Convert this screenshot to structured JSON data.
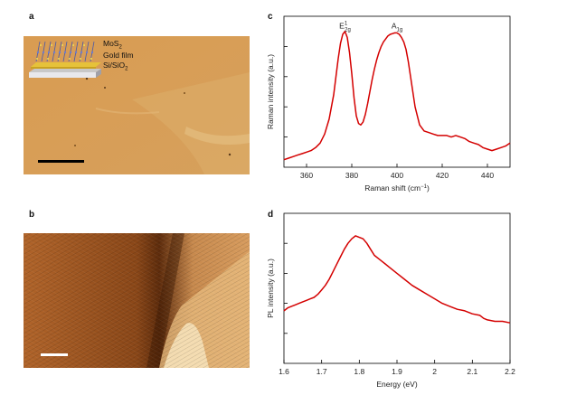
{
  "panels": {
    "a": {
      "letter": "a",
      "legend": [
        "MoS",
        "Gold film",
        "Si/SiO"
      ],
      "legend_sub": [
        "2",
        "",
        "2"
      ]
    },
    "b": {
      "letter": "b"
    },
    "c": {
      "letter": "c"
    },
    "d": {
      "letter": "d"
    }
  },
  "colors": {
    "curve": "#d40000",
    "sample_tan": "#d9a35a",
    "afm_dark": "#7a3e12",
    "afm_light": "#f3d9a8"
  },
  "chart_data": [
    {
      "id": "c",
      "type": "line",
      "xlabel": "Raman shift (cm",
      "xlabel_sup": "−1",
      "xlabel_end": ")",
      "ylabel": "Raman intensity (a.u.)",
      "xlim": [
        350,
        450
      ],
      "ylim": [
        0,
        1
      ],
      "xticks": [
        360,
        380,
        400,
        420,
        440
      ],
      "yticks": [
        0.2,
        0.4,
        0.6,
        0.8
      ],
      "annotations": [
        {
          "base": "E",
          "sup": "1",
          "sub": "2g",
          "x": 377,
          "y": 0.92
        },
        {
          "base": "A",
          "sup": "",
          "sub": "1g",
          "x": 400,
          "y": 0.92
        }
      ],
      "series": [
        {
          "x": [
            350,
            352,
            354,
            356,
            358,
            360,
            362,
            364,
            366,
            368,
            370,
            372,
            373,
            374,
            375,
            376,
            377,
            378,
            379,
            380,
            381,
            382,
            383,
            384,
            385,
            386,
            387,
            388,
            389,
            390,
            391,
            392,
            393,
            394,
            395,
            396,
            397,
            398,
            399,
            400,
            401,
            402,
            403,
            404,
            405,
            406,
            408,
            410,
            412,
            414,
            416,
            418,
            420,
            422,
            424,
            426,
            428,
            430,
            432,
            434,
            436,
            438,
            440,
            442,
            444,
            446,
            448,
            450
          ],
          "y": [
            0.05,
            0.06,
            0.07,
            0.08,
            0.09,
            0.1,
            0.11,
            0.13,
            0.16,
            0.22,
            0.32,
            0.48,
            0.6,
            0.72,
            0.82,
            0.88,
            0.9,
            0.86,
            0.76,
            0.62,
            0.46,
            0.34,
            0.29,
            0.28,
            0.3,
            0.35,
            0.42,
            0.5,
            0.58,
            0.65,
            0.71,
            0.76,
            0.8,
            0.83,
            0.85,
            0.87,
            0.88,
            0.885,
            0.89,
            0.89,
            0.88,
            0.86,
            0.83,
            0.78,
            0.7,
            0.6,
            0.4,
            0.28,
            0.24,
            0.23,
            0.22,
            0.21,
            0.21,
            0.21,
            0.2,
            0.21,
            0.2,
            0.19,
            0.17,
            0.16,
            0.15,
            0.13,
            0.12,
            0.11,
            0.12,
            0.13,
            0.14,
            0.16
          ]
        }
      ]
    },
    {
      "id": "d",
      "type": "line",
      "xlabel": "Energy (eV)",
      "ylabel": "PL intensity (a.u.)",
      "xlim": [
        1.6,
        2.2
      ],
      "ylim": [
        0,
        1
      ],
      "xticks": [
        1.6,
        1.7,
        1.8,
        1.9,
        2.0,
        2.1,
        2.2
      ],
      "yticks": [
        0.2,
        0.4,
        0.6,
        0.8
      ],
      "series": [
        {
          "x": [
            1.6,
            1.61,
            1.62,
            1.63,
            1.64,
            1.65,
            1.66,
            1.67,
            1.68,
            1.69,
            1.7,
            1.71,
            1.72,
            1.73,
            1.74,
            1.75,
            1.76,
            1.77,
            1.78,
            1.79,
            1.8,
            1.81,
            1.82,
            1.83,
            1.84,
            1.85,
            1.86,
            1.87,
            1.88,
            1.9,
            1.92,
            1.94,
            1.96,
            1.98,
            2.0,
            2.02,
            2.04,
            2.06,
            2.08,
            2.1,
            2.12,
            2.13,
            2.14,
            2.16,
            2.18,
            2.2
          ],
          "y": [
            0.35,
            0.37,
            0.38,
            0.39,
            0.4,
            0.41,
            0.42,
            0.43,
            0.44,
            0.46,
            0.49,
            0.52,
            0.56,
            0.61,
            0.66,
            0.71,
            0.76,
            0.8,
            0.83,
            0.85,
            0.84,
            0.83,
            0.8,
            0.76,
            0.72,
            0.7,
            0.68,
            0.66,
            0.64,
            0.6,
            0.56,
            0.52,
            0.49,
            0.46,
            0.43,
            0.4,
            0.38,
            0.36,
            0.35,
            0.33,
            0.32,
            0.3,
            0.29,
            0.28,
            0.28,
            0.27
          ]
        }
      ]
    }
  ]
}
